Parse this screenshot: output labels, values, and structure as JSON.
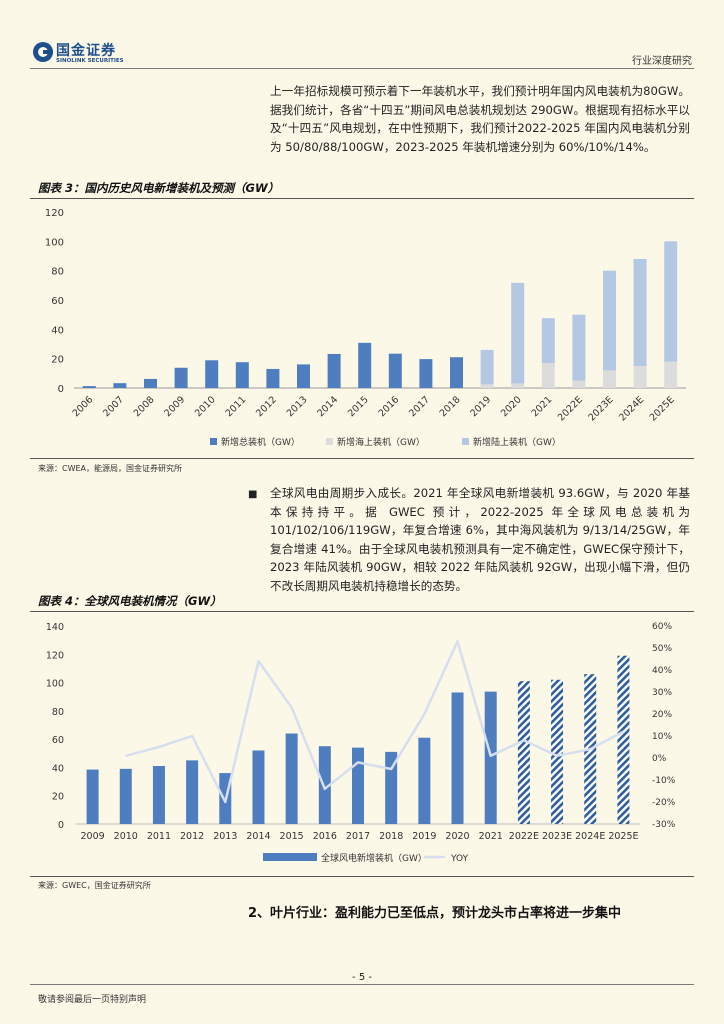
{
  "header": {
    "logo_cn": "国金证券",
    "logo_en": "SINOLINK SECURITIES",
    "right": "行业深度研究"
  },
  "intro_text": "上一年招标规模可预示着下一年装机水平，我们预计明年国内风电装机为80GW。据我们统计，各省“十四五”期间风电总装机规划达 290GW。根据现有招标水平以及“十四五”风电规划，在中性预期下，我们预计2022-2025 年国内风电装机分别为 50/80/88/100GW，2023-2025 年装机增速分别为 60%/10%/14%。",
  "fig3": {
    "title": "图表 3：国内历史风电新增装机及预测（GW）",
    "source": "来源：CWEA，能源局，国金证券研究所"
  },
  "bullet_text": "全球风电由周期步入成长。2021 年全球风电新增装机 93.6GW，与 2020 年基本保持持平。据 GWEC 预计，2022-2025 年全球风电总装机为 101/102/106/119GW，年复合增速 6%，其中海风装机为 9/13/14/25GW，年复合增速 41%。由于全球风电装机预测具有一定不确定性，GWEC保守预计下，2023 年陆风装机 90GW，相较 2022 年陆风装机 92GW，出现小幅下滑，但仍不改长周期风电装机持稳增长的态势。",
  "fig4": {
    "title": "图表 4：全球风电装机情况（GW）",
    "source": "来源：GWEC，国金证券研究所"
  },
  "section_heading": "2、叶片行业：盈利能力已至低点，预计龙头市占率将进一步集中",
  "page_number": "- 5 -",
  "footer_left": "敬请参阅最后一页特别声明",
  "colors": {
    "total": "#4f7ec0",
    "offshore": "#dcdcdc",
    "onshore": "#b4c8e4",
    "yoy": "#d6deef",
    "brand": "#1f4e8c"
  },
  "chart_data": [
    {
      "type": "bar",
      "stacked": true,
      "categories": [
        "2006",
        "2007",
        "2008",
        "2009",
        "2010",
        "2011",
        "2012",
        "2013",
        "2014",
        "2015",
        "2016",
        "2017",
        "2018",
        "2019",
        "2020",
        "2021",
        "2022E",
        "2023E",
        "2024E",
        "2025E"
      ],
      "series": [
        {
          "name": "新增总装机（GW）",
          "values": [
            1.3,
            3.3,
            6.2,
            13.8,
            18.9,
            17.6,
            13,
            16.1,
            23.2,
            30.8,
            23.4,
            19.7,
            21,
            null,
            null,
            null,
            null,
            null,
            null,
            null
          ]
        },
        {
          "name": "新增海上装机（GW）",
          "values": [
            null,
            null,
            null,
            null,
            null,
            null,
            null,
            null,
            null,
            null,
            null,
            null,
            null,
            2.5,
            3.1,
            16.9,
            5,
            12,
            15,
            18
          ]
        },
        {
          "name": "新增陆上装机（GW）",
          "values": [
            null,
            null,
            null,
            null,
            null,
            null,
            null,
            null,
            null,
            null,
            null,
            null,
            null,
            23.5,
            68.6,
            30.7,
            45,
            68,
            73,
            82
          ]
        }
      ],
      "ylim": [
        0,
        120
      ],
      "yticks": [
        0,
        20,
        40,
        60,
        80,
        100,
        120
      ],
      "legend": "bottom",
      "grid": false
    },
    {
      "type": "bar",
      "categories": [
        "2009",
        "2010",
        "2011",
        "2012",
        "2013",
        "2014",
        "2015",
        "2016",
        "2017",
        "2018",
        "2019",
        "2020",
        "2021",
        "2022E",
        "2023E",
        "2024E",
        "2025E"
      ],
      "series": [
        {
          "name": "全球风电新增装机（GW）",
          "axis": "left",
          "values": [
            38.5,
            39,
            41,
            45,
            36,
            52,
            64,
            55,
            54,
            51,
            61,
            93,
            93.6,
            101,
            102,
            106,
            119
          ],
          "hatched_from": "2022E"
        },
        {
          "name": "YOY",
          "type": "line",
          "axis": "right",
          "values": [
            null,
            0.01,
            0.05,
            0.1,
            -0.2,
            0.44,
            0.23,
            -0.14,
            -0.02,
            -0.05,
            0.2,
            0.53,
            0.01,
            0.08,
            0.01,
            0.04,
            0.12
          ]
        }
      ],
      "ylim": [
        0,
        140
      ],
      "yticks": [
        0,
        20,
        40,
        60,
        80,
        100,
        120,
        140
      ],
      "y2lim": [
        -0.3,
        0.6
      ],
      "y2ticks": [
        "-30%",
        "-20%",
        "-10%",
        "0%",
        "10%",
        "20%",
        "30%",
        "40%",
        "50%",
        "60%"
      ],
      "legend": "bottom",
      "grid": false
    }
  ]
}
